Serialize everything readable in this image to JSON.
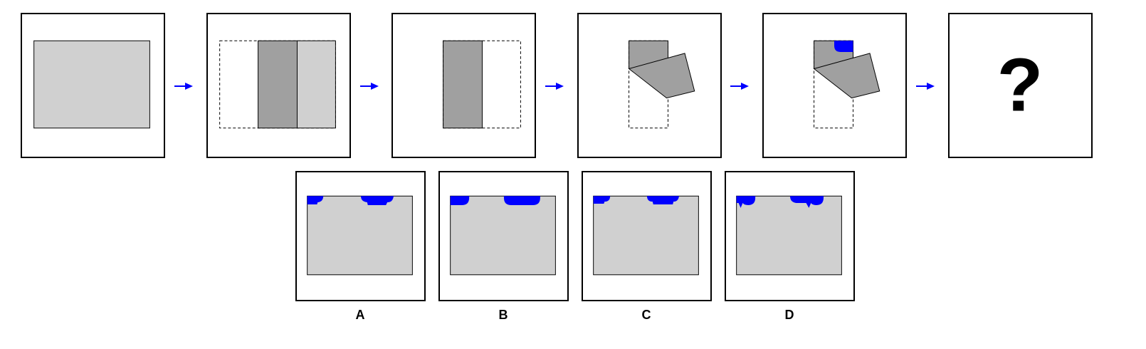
{
  "colors": {
    "sheet": "#d0d0d0",
    "folded": "#a0a0a0",
    "cut": "#0000ff",
    "outline": "#000000",
    "arrow": "#0000ff"
  },
  "sequence": {
    "step_count": 5,
    "question_mark": "?"
  },
  "options": {
    "labels": [
      "A",
      "B",
      "C",
      "D"
    ]
  }
}
